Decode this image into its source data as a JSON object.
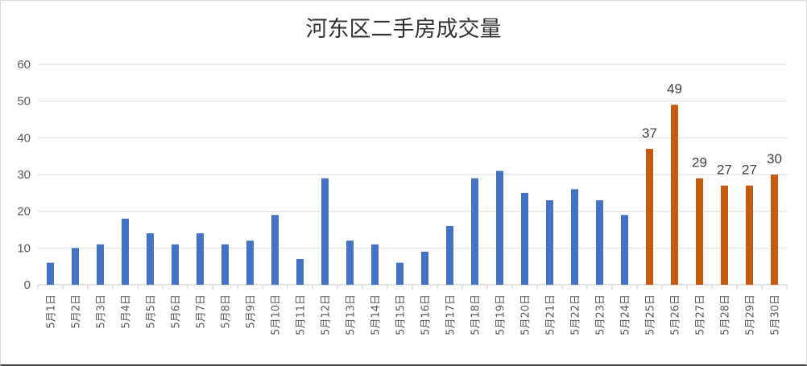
{
  "chart_data": {
    "type": "bar",
    "title": "河东区二手房成交量",
    "xlabel": "",
    "ylabel": "",
    "ylim": [
      0,
      60
    ],
    "yticks": [
      0,
      10,
      20,
      30,
      40,
      50,
      60
    ],
    "grid": true,
    "legend": "none",
    "categories": [
      "5月1日",
      "5月2日",
      "5月3日",
      "5月4日",
      "5月5日",
      "5月6日",
      "5月7日",
      "5月8日",
      "5月9日",
      "5月10日",
      "5月11日",
      "5月12日",
      "5月13日",
      "5月14日",
      "5月15日",
      "5月16日",
      "5月17日",
      "5月18日",
      "5月19日",
      "5月20日",
      "5月21日",
      "5月22日",
      "5月23日",
      "5月24日",
      "5月25日",
      "5月26日",
      "5月27日",
      "5月28日",
      "5月29日",
      "5月30日"
    ],
    "values": [
      6,
      10,
      11,
      18,
      14,
      11,
      14,
      11,
      12,
      19,
      7,
      29,
      12,
      11,
      6,
      9,
      16,
      29,
      31,
      25,
      23,
      26,
      23,
      19,
      37,
      49,
      29,
      27,
      27,
      30
    ],
    "highlight_from_index": 24,
    "colors": {
      "normal": "#4472C4",
      "highlight": "#C55A11"
    },
    "data_labels_on_highlighted": true
  }
}
